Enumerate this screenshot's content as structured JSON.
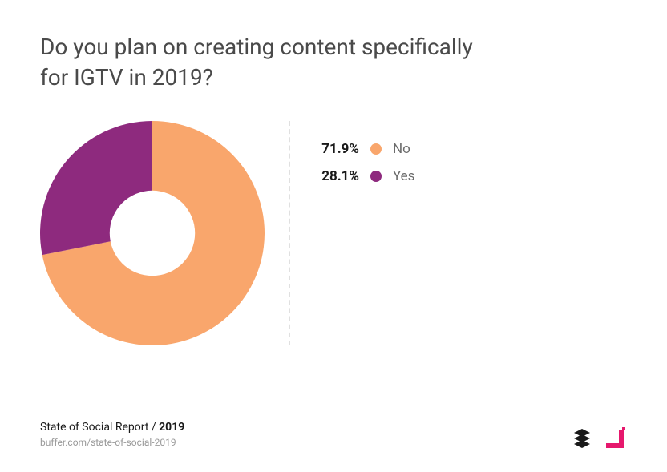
{
  "title": "Do you plan on creating content specifically for IGTV in 2019?",
  "chart": {
    "type": "donut",
    "size": 280,
    "inner_ratio": 0.38,
    "background_color": "#ffffff",
    "start_angle_deg": -90,
    "slices": [
      {
        "label": "No",
        "value": 71.9,
        "percent_label": "71.9%",
        "color": "#f9a66c"
      },
      {
        "label": "Yes",
        "value": 28.1,
        "percent_label": "28.1%",
        "color": "#8e2a7e"
      }
    ],
    "divider_color": "#e0e0e0"
  },
  "legend": {
    "label_color": "#6b6b6b",
    "pct_color": "#1a1a1a",
    "pct_fontsize": 17,
    "label_fontsize": 17
  },
  "footer": {
    "report_prefix": "State of Social Report / ",
    "report_year": "2019",
    "url": "buffer.com/state-of-social-2019"
  },
  "logos": {
    "buffer_color": "#1a1a1a",
    "partner_color": "#e6186d"
  }
}
